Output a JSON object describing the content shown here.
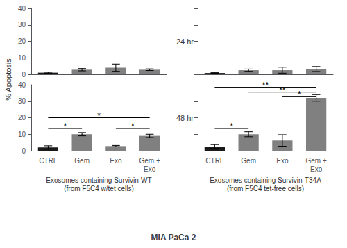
{
  "chart_data": {
    "type": "bar",
    "title": "MIA PaCa 2",
    "ylabel": "% Apoptosis",
    "categories": [
      "CTRL",
      "Gem",
      "Exo",
      "Gem +\nExo"
    ],
    "colors": [
      "#1a1a1a",
      "#808080",
      "#808080",
      "#808080"
    ],
    "ylim": [
      0,
      40
    ],
    "yticks": [
      0,
      10,
      20,
      30,
      40
    ],
    "grid": false,
    "row_labels": [
      "24 hr",
      "48 hr"
    ],
    "xlabels": [
      "Exosomes containing Survivin-WT\n(from F5C4 w/tet cells)",
      "Exosomes containing Survivin-T34A\n(from F5C4 tet-free cells)"
    ],
    "panels": [
      [
        {
          "values": [
            1.0,
            2.8,
            4.0,
            2.8
          ],
          "errors": [
            0.3,
            0.7,
            2.2,
            0.5
          ],
          "tick_labels": "y",
          "annotations": []
        },
        {
          "values": [
            0.8,
            2.5,
            2.5,
            3.2
          ],
          "errors": [
            0.2,
            0.7,
            1.8,
            1.5
          ],
          "tick_labels": false,
          "annotations": []
        }
      ],
      [
        {
          "values": [
            2.0,
            10.0,
            2.8,
            9.0
          ],
          "errors": [
            1.0,
            1.0,
            0.4,
            1.0
          ],
          "annotations": [
            {
              "text": "*",
              "from": "CTRL",
              "to": "Gem",
              "y": 13.5
            },
            {
              "text": "*",
              "from": "CTRL",
              "to": "Gem +\nExo",
              "y": 20
            },
            {
              "text": "*",
              "from": "Exo",
              "to": "Gem +\nExo",
              "y": 13.5
            }
          ]
        },
        {
          "values": [
            2.5,
            10.0,
            6.2,
            32.0
          ],
          "errors": [
            1.2,
            1.5,
            3.5,
            2.0
          ],
          "tick_labels": "x",
          "annotations": [
            {
              "text": "**",
              "from": "CTRL",
              "to": "Gem +\nExo",
              "y": 38.5
            },
            {
              "text": "**",
              "from": "Gem",
              "to": "Gem +\nExo",
              "y": 35.5
            },
            {
              "text": "*",
              "from": "Exo",
              "to": "Gem +\nExo",
              "y": 33
            },
            {
              "text": "*",
              "from": "CTRL",
              "to": "Gem",
              "y": 13.5
            }
          ]
        }
      ]
    ]
  }
}
